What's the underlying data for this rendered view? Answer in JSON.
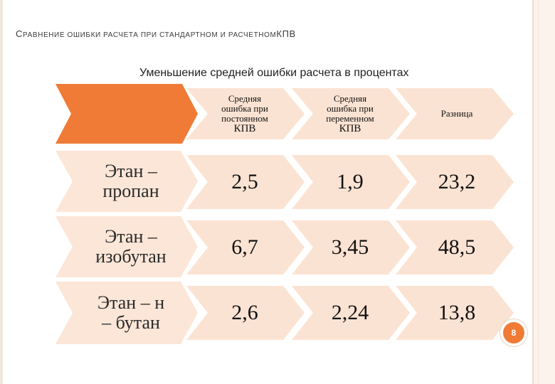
{
  "title": {
    "first_letter": "С",
    "rest": "равнение ошибки расчета при стандартном и расчетном",
    "suffix": "КПВ"
  },
  "subtitle": "Уменьшение средней ошибки расчета в процентах",
  "table": {
    "columns": [
      {
        "lines": [
          "Средняя",
          "ошибка при",
          "постоянном"
        ],
        "last": "КПВ"
      },
      {
        "lines": [
          "Средняя",
          "ошибка при",
          "переменном"
        ],
        "last": "КПВ"
      },
      {
        "lines": [
          "Разница"
        ],
        "last": ""
      }
    ],
    "rows": [
      {
        "label_lines": [
          "Этан –",
          "пропан"
        ],
        "values": [
          "2,5",
          "1,9",
          "23,2"
        ]
      },
      {
        "label_lines": [
          "Этан –",
          "изобутан"
        ],
        "values": [
          "6,7",
          "3,45",
          "48,5"
        ]
      },
      {
        "label_lines": [
          "Этан – н",
          "– бутан"
        ],
        "values": [
          "2,6",
          "2,24",
          "13,8"
        ]
      }
    ]
  },
  "page_number": "8",
  "colors": {
    "accent": "#ef7b36",
    "light": "#fbe3d3",
    "mid": "#f6c9aa",
    "row_label": "#fce6d8"
  }
}
